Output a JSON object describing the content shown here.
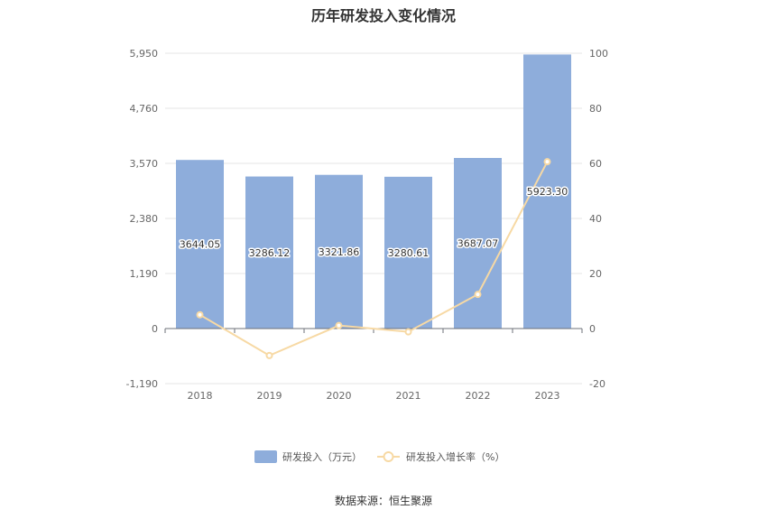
{
  "chart_data": {
    "type": "bar",
    "title": "历年研发投入变化情况",
    "categories": [
      "2018",
      "2019",
      "2020",
      "2021",
      "2022",
      "2023"
    ],
    "series": [
      {
        "name": "研发投入（万元）",
        "type": "bar",
        "axis": "left",
        "color": "#8eaddb",
        "values": [
          3644.05,
          3286.12,
          3321.86,
          3280.61,
          3687.07,
          5923.3
        ],
        "data_labels": [
          "3644.05",
          "3286.12",
          "3321.86",
          "3280.61",
          "3687.07",
          "5923.30"
        ]
      },
      {
        "name": "研发投入增长率（%）",
        "type": "line",
        "axis": "right",
        "color": "#f7d9a4",
        "values": [
          5.0,
          -9.8,
          1.1,
          -1.2,
          12.4,
          60.6
        ]
      }
    ],
    "y_left": {
      "ylim": [
        -1190,
        5950
      ],
      "ticks": [
        -1190,
        0,
        1190,
        2380,
        3570,
        4760,
        5950
      ],
      "tick_labels": [
        "-1,190",
        "0",
        "1,190",
        "2,380",
        "3,570",
        "4,760",
        "5,950"
      ]
    },
    "y_right": {
      "ylim": [
        -20,
        100
      ],
      "ticks": [
        -20,
        0,
        20,
        40,
        60,
        80,
        100
      ],
      "tick_labels": [
        "-20",
        "0",
        "20",
        "40",
        "60",
        "80",
        "100"
      ]
    },
    "grid": true,
    "legend_position": "bottom"
  },
  "source_text": "数据来源：恒生聚源"
}
